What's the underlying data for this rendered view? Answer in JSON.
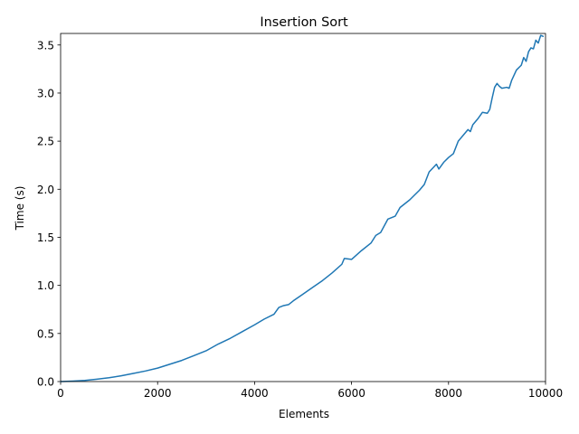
{
  "chart_data": {
    "type": "line",
    "title": "Insertion Sort",
    "xlabel": "Elements",
    "ylabel": "Time (s)",
    "xlim": [
      0,
      10000
    ],
    "ylim": [
      0,
      3.62
    ],
    "xticks": [
      0,
      2000,
      4000,
      6000,
      8000,
      10000
    ],
    "yticks": [
      0.0,
      0.5,
      1.0,
      1.5,
      2.0,
      2.5,
      3.0,
      3.5
    ],
    "xtick_labels": [
      "0",
      "2000",
      "4000",
      "6000",
      "8000",
      "10000"
    ],
    "ytick_labels": [
      "0.0",
      "0.5",
      "1.0",
      "1.5",
      "2.0",
      "2.5",
      "3.0",
      "3.5"
    ],
    "grid": false,
    "line_color": "#1f77b4",
    "series": [
      {
        "x": [
          0,
          250,
          500,
          750,
          1000,
          1250,
          1500,
          1750,
          2000,
          2250,
          2500,
          2750,
          3000,
          3250,
          3500,
          3750,
          4000,
          4200,
          4400,
          4500,
          4600,
          4700,
          4800,
          5000,
          5200,
          5400,
          5600,
          5800,
          5850,
          6000,
          6200,
          6400,
          6500,
          6600,
          6750,
          6900,
          7000,
          7200,
          7400,
          7500,
          7600,
          7750,
          7800,
          7900,
          8000,
          8100,
          8200,
          8300,
          8400,
          8450,
          8500,
          8600,
          8700,
          8800,
          8850,
          8900,
          8950,
          9000,
          9050,
          9100,
          9200,
          9250,
          9300,
          9400,
          9500,
          9550,
          9600,
          9650,
          9700,
          9750,
          9800,
          9850,
          9900,
          9950
        ],
        "y": [
          0.0,
          0.005,
          0.012,
          0.025,
          0.04,
          0.06,
          0.085,
          0.11,
          0.14,
          0.18,
          0.22,
          0.27,
          0.32,
          0.39,
          0.45,
          0.52,
          0.59,
          0.65,
          0.7,
          0.77,
          0.79,
          0.8,
          0.84,
          0.91,
          0.98,
          1.05,
          1.13,
          1.22,
          1.28,
          1.27,
          1.36,
          1.44,
          1.52,
          1.55,
          1.69,
          1.72,
          1.81,
          1.89,
          1.99,
          2.05,
          2.18,
          2.26,
          2.21,
          2.28,
          2.33,
          2.37,
          2.5,
          2.56,
          2.62,
          2.6,
          2.67,
          2.73,
          2.8,
          2.79,
          2.83,
          2.95,
          3.06,
          3.1,
          3.07,
          3.05,
          3.06,
          3.05,
          3.13,
          3.24,
          3.29,
          3.37,
          3.33,
          3.43,
          3.47,
          3.46,
          3.55,
          3.52,
          3.6,
          3.59
        ]
      }
    ]
  }
}
